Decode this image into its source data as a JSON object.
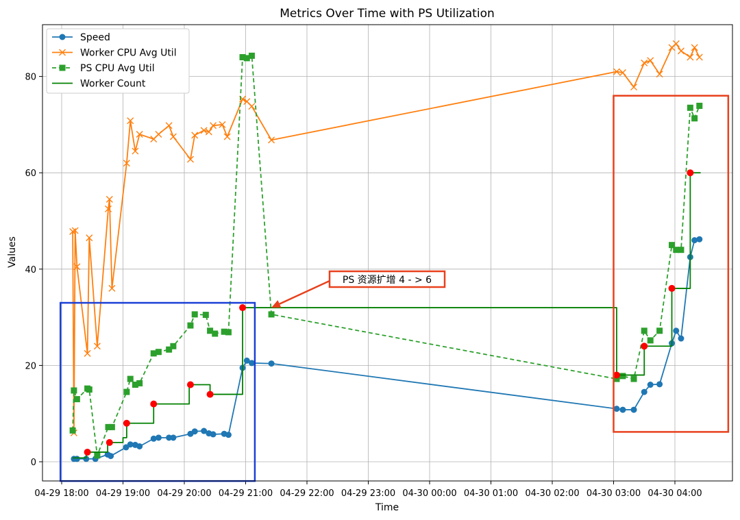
{
  "chart_data": {
    "type": "line",
    "title": "Metrics Over Time with PS Utilization",
    "xlabel": "Time",
    "ylabel": "Values",
    "ylim": [
      -4,
      90
    ],
    "grid": true,
    "legend_placement": "top-left",
    "x_unit": "hours after 04-29 18:00",
    "x_ticks": [
      {
        "x": 0,
        "label": "04-29 18:00"
      },
      {
        "x": 1,
        "label": "04-29 19:00"
      },
      {
        "x": 2,
        "label": "04-29 20:00"
      },
      {
        "x": 3,
        "label": "04-29 21:00"
      },
      {
        "x": 4,
        "label": "04-29 22:00"
      },
      {
        "x": 5,
        "label": "04-29 23:00"
      },
      {
        "x": 6,
        "label": "04-30 00:00"
      },
      {
        "x": 7,
        "label": "04-30 01:00"
      },
      {
        "x": 8,
        "label": "04-30 02:00"
      },
      {
        "x": 9,
        "label": "04-30 03:00"
      },
      {
        "x": 10,
        "label": "04-30 04:00"
      }
    ],
    "y_ticks": [
      0,
      20,
      40,
      60,
      80
    ],
    "series": [
      {
        "name": "Speed",
        "color": "#1f77b4",
        "marker": "circle",
        "style": "solid",
        "points": [
          [
            0.2,
            0.6
          ],
          [
            0.25,
            0.6
          ],
          [
            0.4,
            0.6
          ],
          [
            0.55,
            0.6
          ],
          [
            0.75,
            1.5
          ],
          [
            0.8,
            1.2
          ],
          [
            1.05,
            3.0
          ],
          [
            1.12,
            3.6
          ],
          [
            1.2,
            3.5
          ],
          [
            1.27,
            3.2
          ],
          [
            1.5,
            4.8
          ],
          [
            1.58,
            5.0
          ],
          [
            1.75,
            5.0
          ],
          [
            1.82,
            5.0
          ],
          [
            2.1,
            5.8
          ],
          [
            2.17,
            6.3
          ],
          [
            2.32,
            6.4
          ],
          [
            2.4,
            5.9
          ],
          [
            2.47,
            5.7
          ],
          [
            2.65,
            5.8
          ],
          [
            2.72,
            5.6
          ],
          [
            2.95,
            19.5
          ],
          [
            3.02,
            21.0
          ],
          [
            3.1,
            20.5
          ],
          [
            3.42,
            20.4
          ],
          [
            9.05,
            11.0
          ],
          [
            9.15,
            10.8
          ],
          [
            9.33,
            10.8
          ],
          [
            9.5,
            14.5
          ],
          [
            9.6,
            16.0
          ],
          [
            9.75,
            16.1
          ],
          [
            9.95,
            24.6
          ],
          [
            10.02,
            27.2
          ],
          [
            10.1,
            25.6
          ],
          [
            10.25,
            42.5
          ],
          [
            10.32,
            46.0
          ],
          [
            10.4,
            46.2
          ]
        ]
      },
      {
        "name": "Worker CPU Avg Util",
        "color": "#ff7f0e",
        "marker": "x",
        "style": "solid",
        "points": [
          [
            0.18,
            47.8
          ],
          [
            0.2,
            6.0
          ],
          [
            0.22,
            48.0
          ],
          [
            0.25,
            40.5
          ],
          [
            0.42,
            22.5
          ],
          [
            0.45,
            46.5
          ],
          [
            0.58,
            24.0
          ],
          [
            0.76,
            52.5
          ],
          [
            0.78,
            54.5
          ],
          [
            0.82,
            36.0
          ],
          [
            1.06,
            62.0
          ],
          [
            1.12,
            70.8
          ],
          [
            1.2,
            64.5
          ],
          [
            1.27,
            68.0
          ],
          [
            1.5,
            67.0
          ],
          [
            1.58,
            68.0
          ],
          [
            1.75,
            69.8
          ],
          [
            1.82,
            67.5
          ],
          [
            2.1,
            62.8
          ],
          [
            2.17,
            67.8
          ],
          [
            2.32,
            68.8
          ],
          [
            2.4,
            68.5
          ],
          [
            2.47,
            69.8
          ],
          [
            2.62,
            70.0
          ],
          [
            2.7,
            67.5
          ],
          [
            2.95,
            75.3
          ],
          [
            3.02,
            74.8
          ],
          [
            3.1,
            73.8
          ],
          [
            3.42,
            66.8
          ],
          [
            9.05,
            81.0
          ],
          [
            9.15,
            80.8
          ],
          [
            9.33,
            77.8
          ],
          [
            9.5,
            82.8
          ],
          [
            9.6,
            83.3
          ],
          [
            9.75,
            80.5
          ],
          [
            9.95,
            86.0
          ],
          [
            10.02,
            86.8
          ],
          [
            10.1,
            85.3
          ],
          [
            10.25,
            84.0
          ],
          [
            10.32,
            86.0
          ],
          [
            10.4,
            84.0
          ]
        ]
      },
      {
        "name": "PS CPU Avg Util",
        "color": "#2ca02c",
        "marker": "square",
        "style": "dashed",
        "points": [
          [
            0.18,
            6.5
          ],
          [
            0.2,
            14.8
          ],
          [
            0.25,
            13.0
          ],
          [
            0.42,
            15.2
          ],
          [
            0.45,
            15.0
          ],
          [
            0.58,
            1.3
          ],
          [
            0.76,
            7.2
          ],
          [
            0.82,
            7.2
          ],
          [
            1.06,
            14.5
          ],
          [
            1.12,
            17.2
          ],
          [
            1.2,
            16.0
          ],
          [
            1.27,
            16.3
          ],
          [
            1.5,
            22.5
          ],
          [
            1.58,
            22.8
          ],
          [
            1.75,
            23.3
          ],
          [
            1.82,
            24.0
          ],
          [
            2.1,
            28.3
          ],
          [
            2.17,
            30.6
          ],
          [
            2.35,
            30.5
          ],
          [
            2.42,
            27.2
          ],
          [
            2.5,
            26.6
          ],
          [
            2.65,
            27.0
          ],
          [
            2.72,
            26.9
          ],
          [
            2.95,
            84.0
          ],
          [
            3.02,
            83.8
          ],
          [
            3.1,
            84.3
          ],
          [
            3.42,
            30.6
          ],
          [
            9.05,
            17.2
          ],
          [
            9.15,
            17.8
          ],
          [
            9.33,
            17.2
          ],
          [
            9.5,
            27.2
          ],
          [
            9.6,
            25.2
          ],
          [
            9.75,
            27.2
          ],
          [
            9.95,
            45.0
          ],
          [
            10.02,
            44.0
          ],
          [
            10.1,
            44.0
          ],
          [
            10.25,
            73.5
          ],
          [
            10.32,
            71.3
          ],
          [
            10.4,
            73.9
          ]
        ]
      },
      {
        "name": "Worker Count",
        "color": "#008000",
        "marker": "none",
        "style": "step",
        "points": [
          [
            0.18,
            0.8
          ],
          [
            0.4,
            2.0
          ],
          [
            0.6,
            2.0
          ],
          [
            0.75,
            4.0
          ],
          [
            1.0,
            5.0
          ],
          [
            1.06,
            8.0
          ],
          [
            1.27,
            8.0
          ],
          [
            1.5,
            12.0
          ],
          [
            1.82,
            12.0
          ],
          [
            2.08,
            16.0
          ],
          [
            2.35,
            16.0
          ],
          [
            2.42,
            14.0
          ],
          [
            2.72,
            14.0
          ],
          [
            2.95,
            32.0
          ],
          [
            3.42,
            32.0
          ],
          [
            9.05,
            18.0
          ],
          [
            9.33,
            18.0
          ],
          [
            9.5,
            24.0
          ],
          [
            9.75,
            24.0
          ],
          [
            9.95,
            36.0
          ],
          [
            10.1,
            36.0
          ],
          [
            10.25,
            60.0
          ],
          [
            10.42,
            60.0
          ]
        ]
      }
    ],
    "change_points": {
      "color": "#ff0000",
      "points": [
        [
          0.42,
          2.0
        ],
        [
          0.78,
          4.0
        ],
        [
          1.06,
          8.0
        ],
        [
          1.5,
          12.0
        ],
        [
          2.1,
          16.0
        ],
        [
          2.42,
          14.0
        ],
        [
          2.95,
          32.0
        ],
        [
          9.05,
          18.0
        ],
        [
          9.5,
          24.0
        ],
        [
          9.95,
          36.0
        ],
        [
          10.25,
          60.0
        ]
      ]
    },
    "annotation": {
      "text": "PS 资源扩增 4 - > 6",
      "target": [
        3.42,
        32.0
      ],
      "box_color": "#e8401c",
      "arrow_color": "#e8401c"
    },
    "highlight_boxes": [
      {
        "color": "#1a3fd6",
        "x_range": [
          -0.02,
          3.15
        ],
        "y_range": [
          -4,
          33
        ]
      },
      {
        "color": "#e8401c",
        "x_range": [
          9.0,
          10.87
        ],
        "y_range": [
          6.2,
          76
        ]
      }
    ]
  }
}
